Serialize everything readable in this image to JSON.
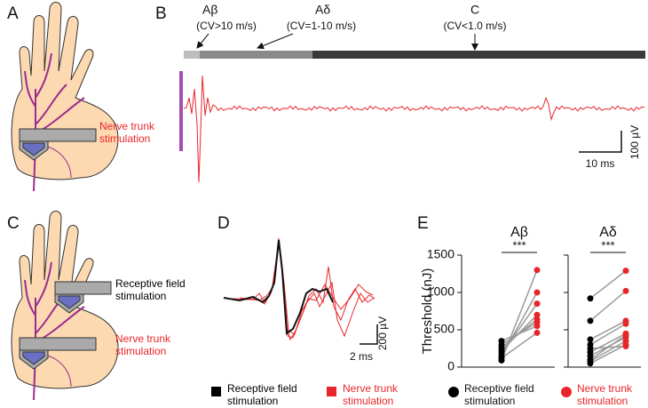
{
  "panels": {
    "A": {
      "label": "A",
      "nerve_label": "Nerve trunk stimulation"
    },
    "B": {
      "label": "B",
      "fibers": [
        {
          "name": "Aβ",
          "cv": "(CV>10 m/s)"
        },
        {
          "name": "Aδ",
          "cv": "(CV=1-10 m/s)"
        },
        {
          "name": "C",
          "cv": "(CV<1.0 m/s)"
        }
      ],
      "time_scale": "10 ms",
      "amp_scale": "100 µV"
    },
    "C": {
      "label": "C",
      "rf_label": "Receptive field stimulation",
      "nerve_label": "Nerve trunk stimulation"
    },
    "D": {
      "label": "D",
      "time_scale": "2 ms",
      "amp_scale": "200 µV",
      "legend": [
        "Receptive field stimulation",
        "Nerve trunk stimulation"
      ]
    },
    "E": {
      "label": "E"
    }
  },
  "chart_data": [
    {
      "type": "scatter",
      "title": "Aβ",
      "annotation": "***",
      "ylabel": "Threshold (nJ)",
      "ylim": [
        0,
        1500
      ],
      "yticks": [
        0,
        500,
        1000,
        1500
      ],
      "series": [
        {
          "name": "Receptive field stimulation",
          "color": "#000000",
          "values": [
            90,
            140,
            180,
            220,
            260,
            300,
            350,
            120
          ]
        },
        {
          "name": "Nerve trunk stimulation",
          "color": "#e8262a",
          "values": [
            1300,
            1000,
            850,
            700,
            640,
            600,
            550,
            460
          ]
        }
      ]
    },
    {
      "type": "scatter",
      "title": "Aδ",
      "annotation": "***",
      "ylim": [
        0,
        1500
      ],
      "series": [
        {
          "name": "Receptive field stimulation",
          "color": "#000000",
          "values": [
            920,
            620,
            370,
            300,
            200,
            150,
            80,
            50,
            250,
            100
          ]
        },
        {
          "name": "Nerve trunk stimulation",
          "color": "#e8262a",
          "values": [
            1290,
            1020,
            620,
            580,
            450,
            400,
            350,
            300,
            280,
            430
          ]
        }
      ]
    }
  ]
}
